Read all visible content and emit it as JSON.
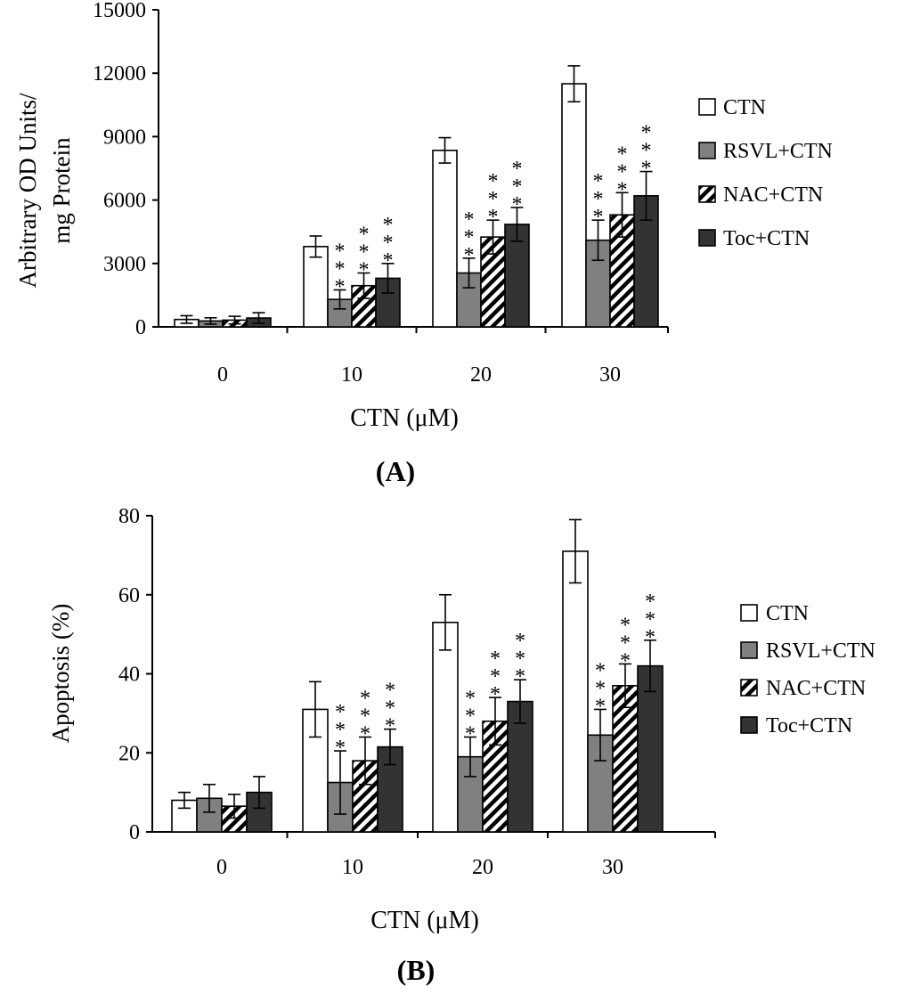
{
  "chart_data": [
    {
      "type": "bar",
      "panel_label": "(A)",
      "ylabel_lines": [
        "Arbitrary OD Units/",
        "mg Protein"
      ],
      "xlabel": "CTN (μM)",
      "categories": [
        "0",
        "10",
        "20",
        "30"
      ],
      "ylim": [
        0,
        15000
      ],
      "yticks": [
        "0",
        "3000",
        "6000",
        "9000",
        "12000",
        "15000"
      ],
      "ytick_values": [
        0,
        3000,
        6000,
        9000,
        12000,
        15000
      ],
      "legend_position": "right",
      "series": [
        {
          "name": "CTN",
          "pattern": "white",
          "values": [
            350,
            3800,
            8350,
            11500
          ],
          "errors": [
            180,
            500,
            600,
            850
          ],
          "significance": [
            "",
            "",
            "",
            ""
          ]
        },
        {
          "name": "RSVL+CTN",
          "pattern": "gray",
          "values": [
            280,
            1300,
            2550,
            4100
          ],
          "errors": [
            150,
            450,
            700,
            950
          ],
          "significance": [
            "",
            "***",
            "***",
            "***"
          ]
        },
        {
          "name": "NAC+CTN",
          "pattern": "hatch",
          "values": [
            320,
            1950,
            4250,
            5300
          ],
          "errors": [
            180,
            600,
            800,
            1050
          ],
          "significance": [
            "",
            "***",
            "***",
            "***"
          ]
        },
        {
          "name": "Toc+CTN",
          "pattern": "dark",
          "values": [
            420,
            2300,
            4850,
            6200
          ],
          "errors": [
            250,
            700,
            800,
            1150
          ],
          "significance": [
            "",
            "***",
            "***",
            "***"
          ]
        }
      ]
    },
    {
      "type": "bar",
      "panel_label": "(B)",
      "ylabel_lines": [
        "Apoptosis (%)"
      ],
      "xlabel": "CTN (μM)",
      "categories": [
        "0",
        "10",
        "20",
        "30"
      ],
      "ylim": [
        0,
        80
      ],
      "yticks": [
        "0",
        "20",
        "40",
        "60",
        "80"
      ],
      "ytick_values": [
        0,
        20,
        40,
        60,
        80
      ],
      "legend_position": "right",
      "series": [
        {
          "name": "CTN",
          "pattern": "white",
          "values": [
            8,
            31,
            53,
            71
          ],
          "errors": [
            2,
            7,
            7,
            8
          ],
          "significance": [
            "",
            "",
            "",
            ""
          ]
        },
        {
          "name": "RSVL+CTN",
          "pattern": "gray",
          "values": [
            8.5,
            12.5,
            19,
            24.5
          ],
          "errors": [
            3.5,
            8,
            5,
            6.5
          ],
          "significance": [
            "",
            "***",
            "***",
            "***"
          ]
        },
        {
          "name": "NAC+CTN",
          "pattern": "hatch",
          "values": [
            6.5,
            18,
            28,
            37
          ],
          "errors": [
            3,
            6,
            6,
            5.5
          ],
          "significance": [
            "",
            "***",
            "***",
            "***"
          ]
        },
        {
          "name": "Toc+CTN",
          "pattern": "dark",
          "values": [
            10,
            21.5,
            33,
            42
          ],
          "errors": [
            4,
            4.5,
            5.5,
            6.5
          ],
          "significance": [
            "",
            "***",
            "***",
            "***"
          ]
        }
      ]
    }
  ]
}
